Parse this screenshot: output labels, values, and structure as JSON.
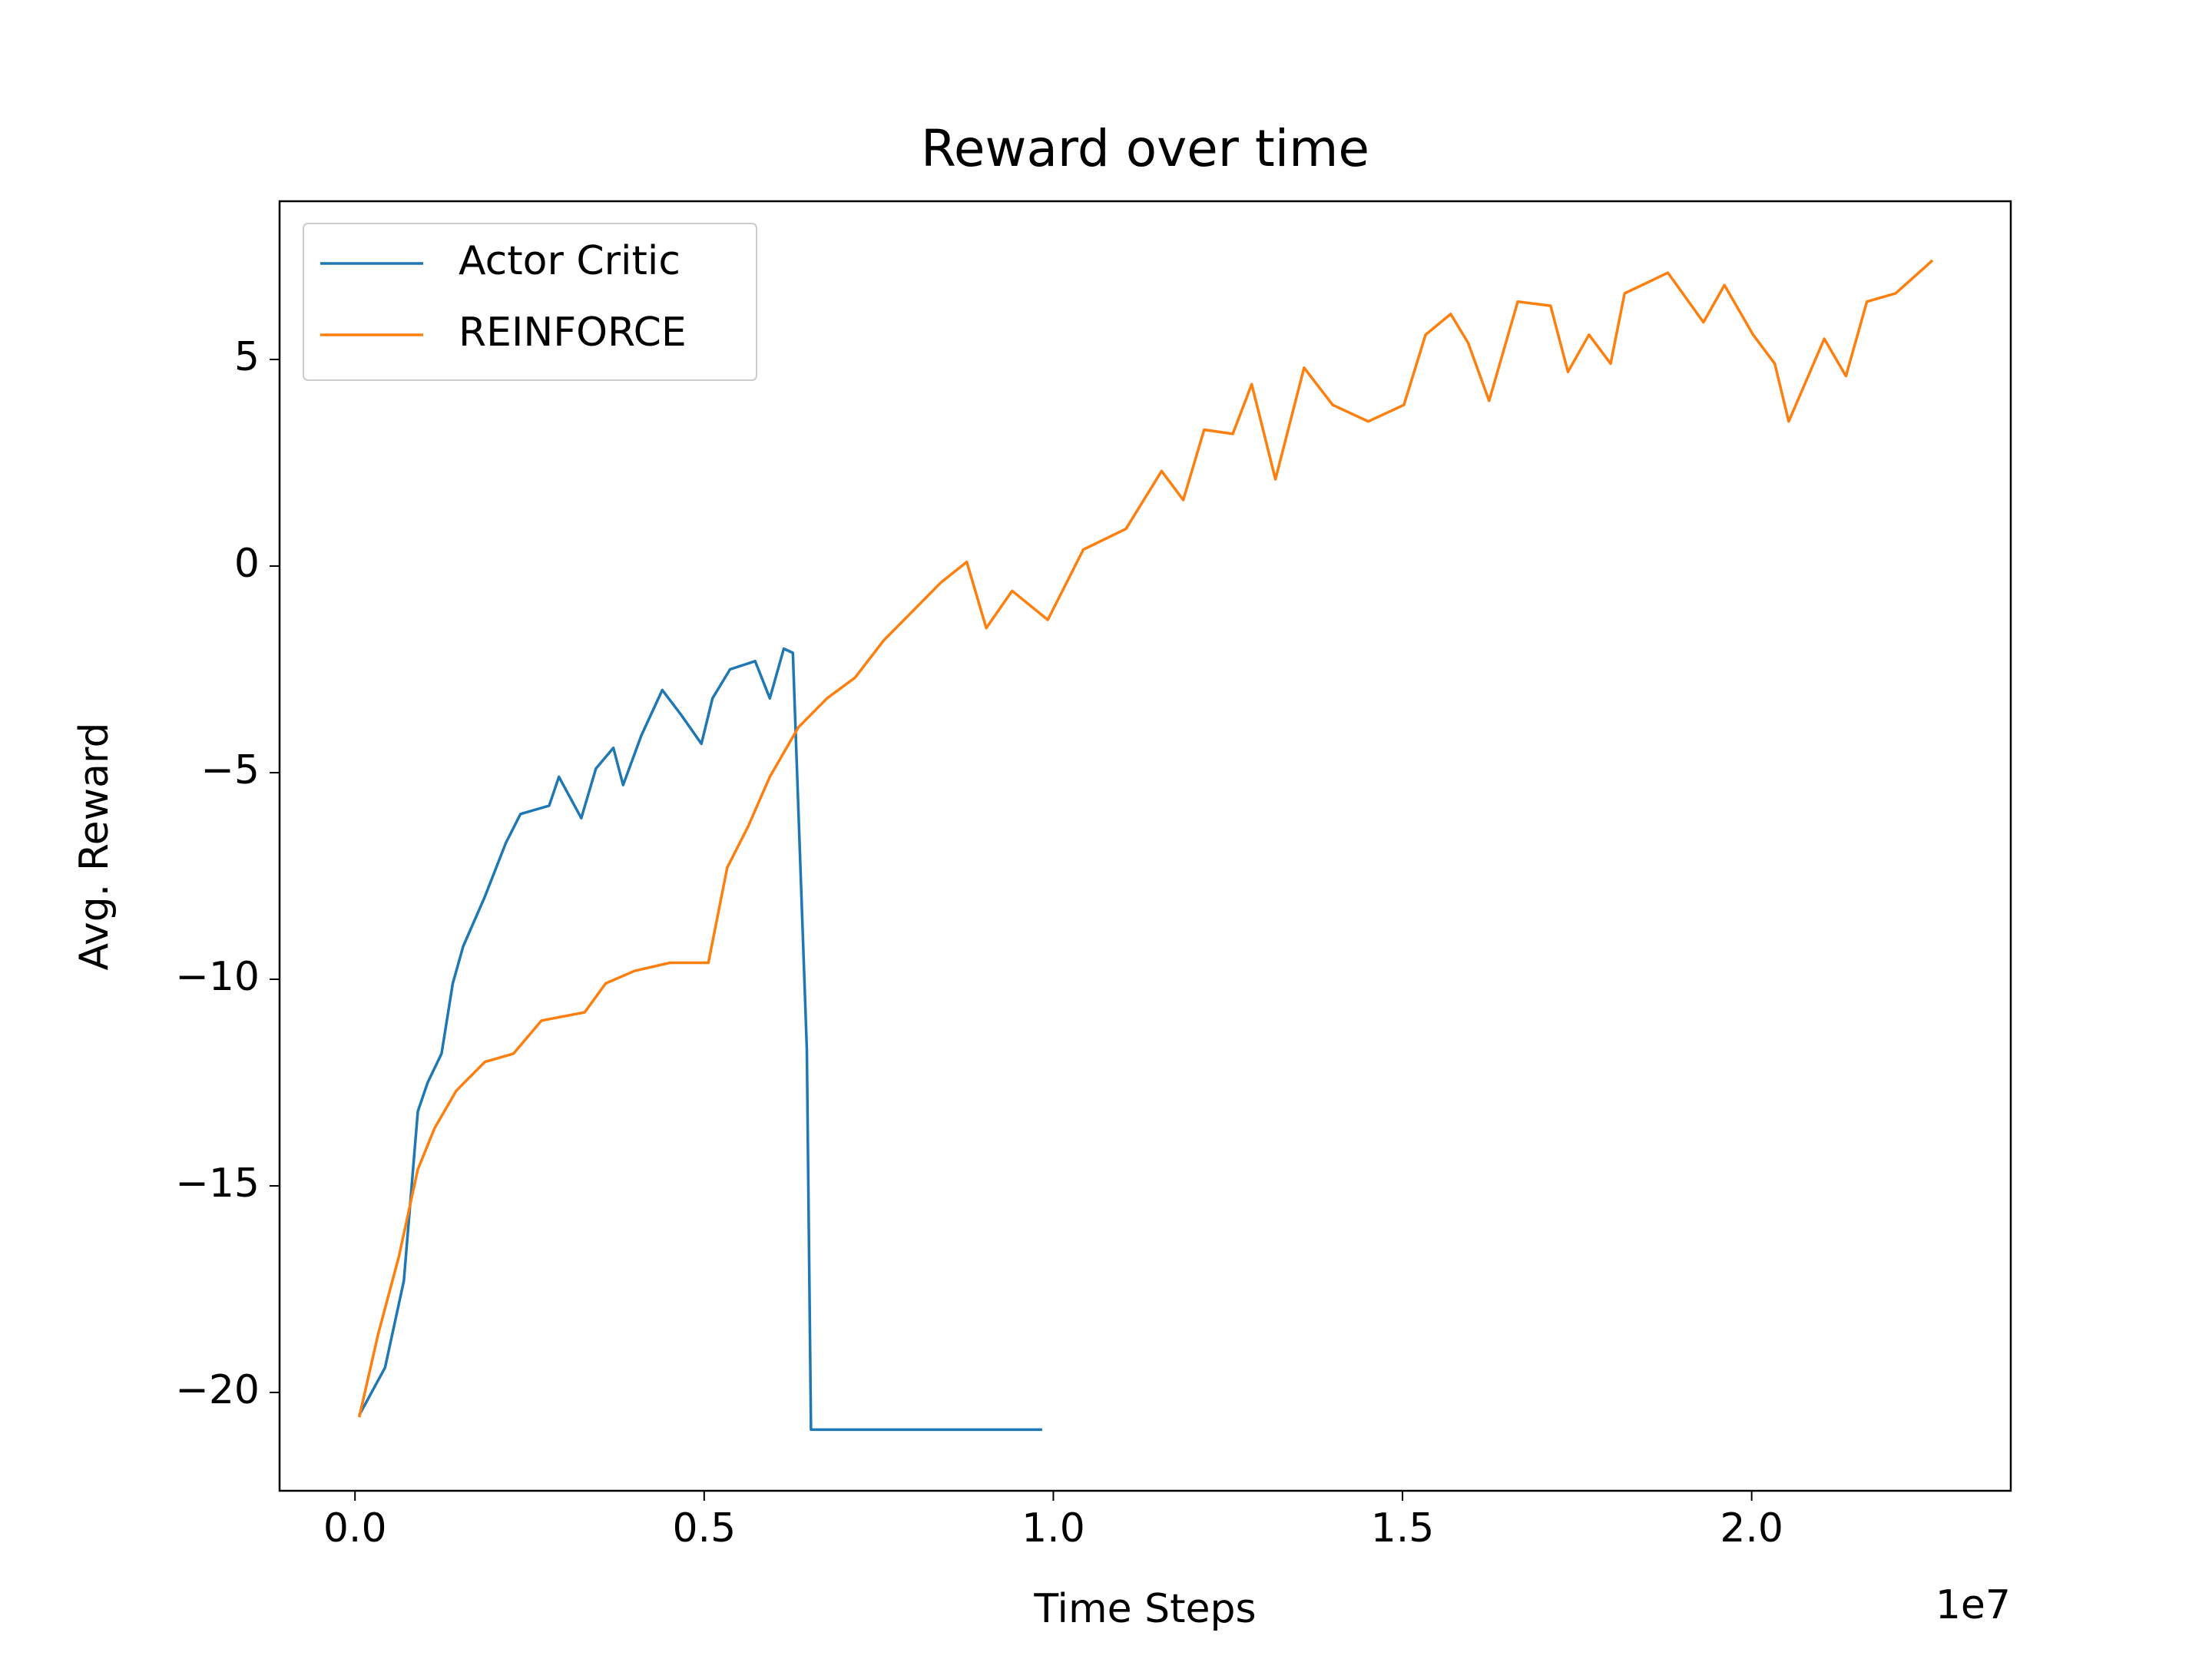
{
  "chart_data": {
    "type": "line",
    "title": "Reward over time",
    "x_label": "Time Steps",
    "y_label": "Avg. Reward",
    "x_offset_label": "1e7",
    "legend": "upper left",
    "grid": false,
    "xlim": [
      -0.108,
      2.371
    ],
    "ylim": [
      -22.38,
      8.83
    ],
    "xticks": [
      {
        "value": 0,
        "label": "0.0"
      },
      0.5,
      {
        "value": 1,
        "label": "1.0"
      },
      1.5,
      {
        "value": 2,
        "label": "2.0"
      }
    ],
    "yticks": [
      {
        "value": -20,
        "label": "−20"
      },
      {
        "value": -15,
        "label": "−15"
      },
      {
        "value": -10,
        "label": "−10"
      },
      {
        "value": -5,
        "label": "−5"
      },
      0,
      5
    ],
    "series": [
      {
        "name": "Actor Critic",
        "color": "#1f77b4",
        "x": [
          0.006,
          0.043,
          0.07,
          0.09,
          0.104,
          0.124,
          0.14,
          0.155,
          0.186,
          0.216,
          0.237,
          0.278,
          0.292,
          0.324,
          0.345,
          0.37,
          0.384,
          0.41,
          0.44,
          0.467,
          0.496,
          0.512,
          0.537,
          0.573,
          0.594,
          0.614,
          0.627,
          0.647,
          0.653,
          0.984
        ],
        "values": [
          -20.55,
          -19.4,
          -17.3,
          -13.2,
          -12.5,
          -11.8,
          -10.1,
          -9.2,
          -8.0,
          -6.7,
          -6.0,
          -5.8,
          -5.1,
          -6.1,
          -4.9,
          -4.4,
          -5.3,
          -4.1,
          -3.0,
          -3.6,
          -4.3,
          -3.2,
          -2.5,
          -2.3,
          -3.2,
          -2.0,
          -2.1,
          -11.7,
          -20.9,
          -20.9
        ]
      },
      {
        "name": "REINFORCE",
        "color": "#ff7f0e",
        "x": [
          0.006,
          0.033,
          0.063,
          0.09,
          0.114,
          0.145,
          0.186,
          0.227,
          0.267,
          0.329,
          0.359,
          0.4,
          0.451,
          0.506,
          0.533,
          0.563,
          0.594,
          0.635,
          0.676,
          0.716,
          0.757,
          0.798,
          0.839,
          0.876,
          0.904,
          0.941,
          0.992,
          1.043,
          1.104,
          1.155,
          1.186,
          1.216,
          1.257,
          1.284,
          1.318,
          1.359,
          1.4,
          1.451,
          1.502,
          1.533,
          1.569,
          1.594,
          1.624,
          1.665,
          1.712,
          1.737,
          1.767,
          1.798,
          1.818,
          1.88,
          1.931,
          1.961,
          2.002,
          2.033,
          2.053,
          2.104,
          2.135,
          2.165,
          2.206,
          2.259
        ],
        "values": [
          -20.6,
          -18.6,
          -16.7,
          -14.6,
          -13.6,
          -12.7,
          -12.0,
          -11.8,
          -11.0,
          -10.8,
          -10.1,
          -9.8,
          -9.6,
          -9.6,
          -7.3,
          -6.3,
          -5.1,
          -3.9,
          -3.2,
          -2.7,
          -1.8,
          -1.1,
          -0.4,
          0.1,
          -1.5,
          -0.6,
          -1.3,
          0.4,
          0.9,
          2.3,
          1.6,
          3.3,
          3.2,
          4.4,
          2.1,
          4.8,
          3.9,
          3.5,
          3.9,
          5.6,
          6.1,
          5.4,
          4.0,
          6.4,
          6.3,
          4.7,
          5.6,
          4.9,
          6.6,
          7.1,
          5.9,
          6.8,
          5.6,
          4.9,
          3.5,
          5.5,
          4.6,
          6.4,
          6.6,
          7.4
        ]
      }
    ]
  }
}
